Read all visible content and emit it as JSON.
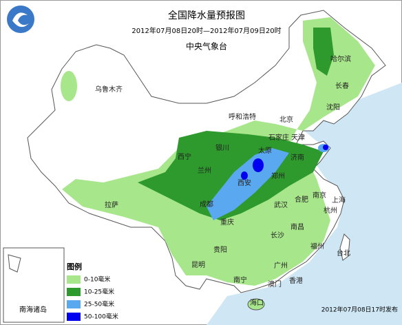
{
  "header": {
    "title": "全国降水量预报图",
    "period": "2012年07月08日20时—2012年07月09日20时",
    "issuer": "中央气象台"
  },
  "cities": [
    "乌鲁木齐",
    "哈尔滨",
    "长春",
    "沈阳",
    "呼和浩特",
    "北京",
    "天津",
    "石家庄",
    "银川",
    "太原",
    "济南",
    "西宁",
    "兰州",
    "郑州",
    "西安",
    "合肥",
    "南京",
    "上海",
    "成都",
    "武汉",
    "杭州",
    "拉萨",
    "重庆",
    "南昌",
    "长沙",
    "贵阳",
    "福州",
    "昆明",
    "台北",
    "广州",
    "南宁",
    "澳门",
    "香港",
    "海口"
  ],
  "inset": {
    "label": "南海诸岛"
  },
  "legend": {
    "title": "图例",
    "items": [
      {
        "label": "0-10毫米",
        "color": "#a8e68c"
      },
      {
        "label": "10-25毫米",
        "color": "#2e9a2e"
      },
      {
        "label": "25-50毫米",
        "color": "#5aa8f0"
      },
      {
        "label": "50-100毫米",
        "color": "#0000f0"
      }
    ]
  },
  "footer": "2012年07月08日17时发布"
}
